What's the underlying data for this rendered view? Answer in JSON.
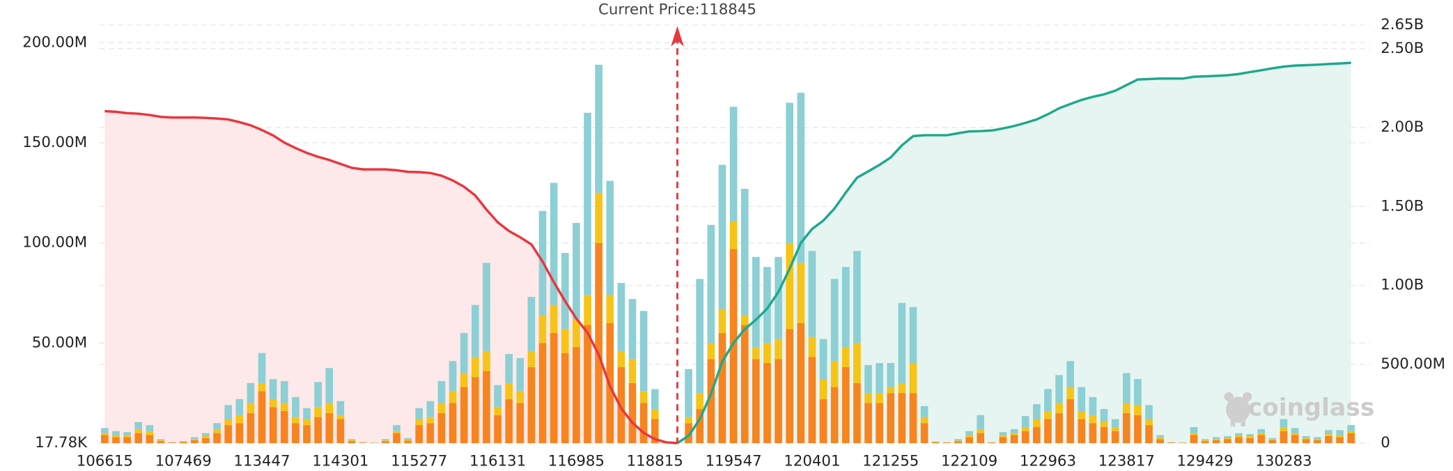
{
  "chart_data": {
    "type": "bar",
    "annotation": "Current Price:118845",
    "watermark": "coinglass",
    "categories": [
      "106615",
      null,
      null,
      null,
      null,
      null,
      null,
      "107469",
      null,
      null,
      null,
      null,
      null,
      null,
      "113447",
      null,
      null,
      null,
      null,
      null,
      null,
      "114301",
      null,
      null,
      null,
      null,
      null,
      null,
      "115277",
      null,
      null,
      null,
      null,
      null,
      null,
      "116131",
      null,
      null,
      null,
      null,
      null,
      null,
      "116985",
      null,
      null,
      null,
      null,
      null,
      null,
      "118815",
      null,
      null,
      null,
      null,
      null,
      null,
      "119547",
      null,
      null,
      null,
      null,
      null,
      null,
      "120401",
      null,
      null,
      null,
      null,
      null,
      null,
      "121255",
      null,
      null,
      null,
      null,
      null,
      null,
      "122109",
      null,
      null,
      null,
      null,
      null,
      null,
      "122963",
      null,
      null,
      null,
      null,
      null,
      null,
      "123817",
      null,
      null,
      null,
      null,
      null,
      null,
      "129429",
      null,
      null,
      null,
      null,
      null,
      null,
      "130283",
      null,
      null,
      null,
      null,
      null,
      null
    ],
    "ylim": [
      0,
      208.8
    ],
    "yticks": [
      {
        "value": 0.01778,
        "label": "17.78K"
      },
      {
        "value": 50,
        "label": "50.00M"
      },
      {
        "value": 100,
        "label": "100.00M"
      },
      {
        "value": 150,
        "label": "150.00M"
      },
      {
        "value": 200,
        "label": "200.00M"
      }
    ],
    "y2lim": [
      0,
      2650
    ],
    "y2ticks": [
      0,
      {
        "value": 500,
        "label": "500.00M"
      },
      {
        "value": 1000,
        "label": "1.00B"
      },
      {
        "value": 1500,
        "label": "1.50B"
      },
      {
        "value": 2000,
        "label": "2.00B"
      },
      {
        "value": 2500,
        "label": "2.50B"
      },
      {
        "value": 2650,
        "label": "2.65B"
      }
    ],
    "grid": true,
    "series": [
      {
        "type": "bar",
        "color": "#f7841e",
        "values": [
          4,
          3,
          3,
          5,
          4,
          1,
          0.3,
          0.5,
          1.5,
          2.5,
          5,
          9,
          10,
          15,
          26,
          18,
          16,
          10,
          9,
          13,
          15,
          12,
          1,
          0.2,
          0.1,
          1,
          5,
          1.2,
          9,
          10,
          15,
          20,
          28,
          33,
          36,
          14,
          22,
          20,
          38,
          50,
          55,
          45,
          48,
          59,
          100,
          60,
          38,
          30,
          20,
          12,
          0.3,
          null,
          10,
          17,
          42,
          55,
          97,
          59,
          42,
          40,
          42,
          57,
          60,
          43,
          22,
          28,
          38,
          30,
          20,
          20,
          25,
          25,
          25,
          10,
          0.5,
          0.3,
          1,
          3,
          5,
          0.3,
          3,
          4,
          6,
          8,
          12,
          15,
          22,
          12,
          10,
          8,
          6,
          15,
          14,
          9,
          2,
          0.3,
          0.2,
          4,
          1,
          1.5,
          2,
          3,
          2.5,
          4,
          1.5,
          6,
          4,
          2,
          1.5,
          3.5,
          3,
          5
        ]
      },
      {
        "type": "bar",
        "color": "#f6c417",
        "values": [
          1,
          1,
          1,
          2,
          2,
          0.5,
          0.1,
          0.2,
          0.5,
          1,
          2,
          3,
          4,
          5,
          4,
          4,
          4,
          3,
          3,
          5,
          5,
          2,
          0.5,
          0.1,
          0.1,
          0.3,
          1,
          0.5,
          3,
          3,
          5,
          6,
          7,
          10,
          10,
          4,
          8,
          6,
          8,
          14,
          14,
          12,
          14,
          15,
          25,
          14,
          8,
          12,
          6,
          5,
          0.1,
          null,
          3,
          8,
          8,
          12,
          14,
          5,
          6,
          10,
          10,
          43,
          30,
          10,
          10,
          13,
          10,
          20,
          5,
          5,
          3,
          5,
          15,
          3,
          0.1,
          0.1,
          0.3,
          1,
          2,
          0.1,
          1,
          1,
          2,
          4,
          4,
          5,
          6,
          4,
          4,
          3,
          2,
          5,
          5,
          3,
          1,
          0.1,
          0.05,
          1,
          0.5,
          0.5,
          0.5,
          1,
          1,
          1,
          0.5,
          2,
          1,
          0.5,
          0.5,
          1,
          1,
          1
        ]
      },
      {
        "type": "bar",
        "color": "#8ccfd4",
        "values": [
          2.5,
          2,
          1.5,
          3.5,
          3,
          0.5,
          0.1,
          0.3,
          1,
          1.5,
          3,
          7,
          8,
          10,
          15,
          10,
          11,
          10,
          5.5,
          12.5,
          17.5,
          7,
          0.5,
          0.2,
          0.1,
          0.7,
          3,
          0.8,
          5.5,
          8,
          11,
          15,
          20,
          26,
          44,
          11,
          14.5,
          16.5,
          27,
          52,
          61,
          38,
          48,
          91,
          64,
          57,
          34,
          30,
          40,
          10,
          0.1,
          null,
          24,
          57,
          59,
          72,
          57,
          63,
          45,
          38,
          41,
          70,
          85,
          43,
          20,
          41,
          40,
          46,
          14,
          15,
          12,
          40,
          28,
          5.5,
          0.2,
          0.1,
          0.7,
          2,
          7,
          0.1,
          1.5,
          2,
          5.5,
          7.5,
          11,
          14,
          13,
          12,
          9,
          6,
          4,
          15,
          13,
          7,
          1,
          0.1,
          0.05,
          3,
          0.5,
          1,
          1,
          1,
          1,
          2,
          0.5,
          4,
          2.5,
          1,
          1,
          2,
          2.5,
          3
        ]
      },
      {
        "type": "line",
        "axis": "y2",
        "color": "#e8363f",
        "area_color": "#fde8ea",
        "values": [
          2105,
          2100,
          2092,
          2088,
          2080,
          2068,
          2064,
          2064,
          2064,
          2062,
          2058,
          2052,
          2035,
          2015,
          1985,
          1950,
          1905,
          1870,
          1840,
          1815,
          1795,
          1770,
          1745,
          1735,
          1735,
          1735,
          1730,
          1720,
          1718,
          1712,
          1695,
          1665,
          1625,
          1570,
          1480,
          1400,
          1345,
          1305,
          1260,
          1150,
          1020,
          900,
          790,
          700,
          560,
          360,
          220,
          130,
          65,
          25,
          5,
          0,
          null,
          null,
          null,
          null,
          null,
          null,
          null,
          null,
          null,
          null,
          null,
          null,
          null,
          null,
          null,
          null,
          null,
          null,
          null,
          null,
          null,
          null,
          null,
          null,
          null,
          null,
          null,
          null,
          null,
          null,
          null,
          null,
          null,
          null,
          null,
          null,
          null,
          null,
          null,
          null,
          null,
          null,
          null,
          null,
          null,
          null,
          null,
          null,
          null,
          null,
          null,
          null,
          null,
          null,
          null,
          null,
          null,
          null,
          null,
          null
        ]
      },
      {
        "type": "line",
        "axis": "y2",
        "color": "#1fa88c",
        "area_color": "#e6f5f1",
        "values": [
          null,
          null,
          null,
          null,
          null,
          null,
          null,
          null,
          null,
          null,
          null,
          null,
          null,
          null,
          null,
          null,
          null,
          null,
          null,
          null,
          null,
          null,
          null,
          null,
          null,
          null,
          null,
          null,
          null,
          null,
          null,
          null,
          null,
          null,
          null,
          null,
          null,
          null,
          null,
          null,
          null,
          null,
          null,
          null,
          null,
          null,
          null,
          null,
          null,
          null,
          null,
          0,
          47,
          153,
          312,
          517,
          635,
          723,
          782,
          853,
          958,
          1105,
          1270,
          1358,
          1411,
          1488,
          1588,
          1682,
          1723,
          1764,
          1811,
          1888,
          1946,
          1952,
          1952,
          1952,
          1964,
          1976,
          1978,
          1982,
          1995,
          2011,
          2030,
          2052,
          2085,
          2123,
          2150,
          2176,
          2195,
          2211,
          2234,
          2270,
          2305,
          2308,
          2311,
          2311,
          2311,
          2323,
          2325,
          2328,
          2332,
          2340,
          2352,
          2364,
          2376,
          2387,
          2393,
          2396,
          2399,
          2403,
          2407,
          2411
        ]
      }
    ]
  }
}
